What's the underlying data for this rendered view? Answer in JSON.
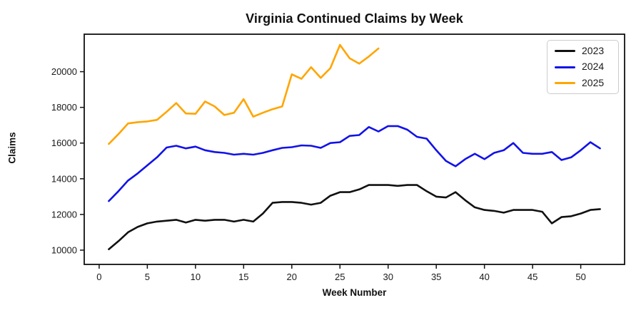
{
  "figure": {
    "title": "Virginia Continued Claims by Week",
    "xlabel": "Week Number",
    "ylabel": "Claims"
  },
  "chart_data": {
    "type": "line",
    "title": "Virginia Continued Claims by Week",
    "xlabel": "Week Number",
    "ylabel": "Claims",
    "grid": false,
    "legend_position": "upper right",
    "background": "#ffffff",
    "axis_color": "#111111",
    "xlim": [
      -1.55,
      54.55
    ],
    "ylim": [
      9200,
      22100
    ],
    "xticks": [
      0,
      5,
      10,
      15,
      20,
      25,
      30,
      35,
      40,
      45,
      50
    ],
    "yticks": [
      10000,
      12000,
      14000,
      16000,
      18000,
      20000
    ],
    "weeks": [
      1,
      2,
      3,
      4,
      5,
      6,
      7,
      8,
      9,
      10,
      11,
      12,
      13,
      14,
      15,
      16,
      17,
      18,
      19,
      20,
      21,
      22,
      23,
      24,
      25,
      26,
      27,
      28,
      29,
      30,
      31,
      32,
      33,
      34,
      35,
      36,
      37,
      38,
      39,
      40,
      41,
      42,
      43,
      44,
      45,
      46,
      47,
      48,
      49,
      50,
      51,
      52
    ],
    "series": [
      {
        "name": "2023",
        "color": "#111111",
        "start_week": 1,
        "values": [
          10050,
          10500,
          11000,
          11300,
          11500,
          11600,
          11650,
          11700,
          11550,
          11700,
          11650,
          11700,
          11700,
          11600,
          11700,
          11600,
          12050,
          12650,
          12700,
          12700,
          12650,
          12550,
          12650,
          13050,
          13250,
          13250,
          13400,
          13650,
          13650,
          13650,
          13600,
          13650,
          13650,
          13300,
          13000,
          12950,
          13250,
          12800,
          12400,
          12250,
          12200,
          12100,
          12250,
          12250,
          12250,
          12150,
          11500,
          11850,
          11900,
          12050,
          12250,
          12300
        ]
      },
      {
        "name": "2024",
        "color": "#1212e8",
        "start_week": 1,
        "values": [
          12750,
          13300,
          13900,
          14300,
          14750,
          15200,
          15750,
          15850,
          15700,
          15800,
          15600,
          15500,
          15450,
          15350,
          15400,
          15350,
          15450,
          15600,
          15730,
          15770,
          15870,
          15850,
          15730,
          16000,
          16050,
          16400,
          16450,
          16900,
          16650,
          16950,
          16950,
          16750,
          16350,
          16250,
          15600,
          15000,
          14700,
          15100,
          15400,
          15100,
          15450,
          15600,
          16000,
          15450,
          15400,
          15400,
          15500,
          15050,
          15200,
          15600,
          16050,
          15700
        ]
      },
      {
        "name": "2025",
        "color": "#ffa500",
        "start_week": 1,
        "values": [
          15950,
          16500,
          17100,
          17170,
          17210,
          17300,
          17750,
          18240,
          17660,
          17640,
          18330,
          18050,
          17570,
          17700,
          18460,
          17480,
          17700,
          17900,
          18050,
          19850,
          19600,
          20250,
          19650,
          20200,
          21500,
          20750,
          20450,
          20850,
          21300
        ]
      }
    ]
  }
}
